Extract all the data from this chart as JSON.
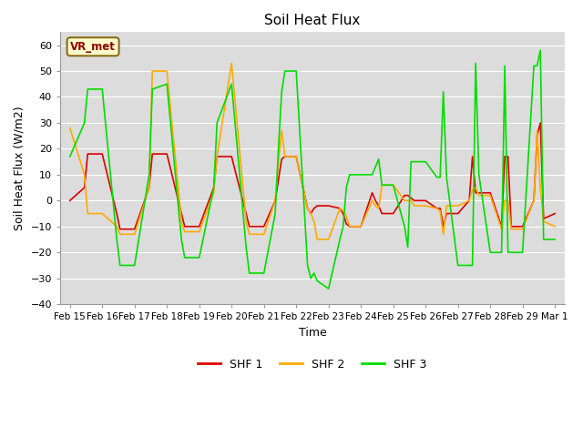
{
  "title": "Soil Heat Flux",
  "xlabel": "Time",
  "ylabel": "Soil Heat Flux (W/m2)",
  "ylim": [
    -40,
    65
  ],
  "yticks": [
    -40,
    -30,
    -20,
    -10,
    0,
    10,
    20,
    30,
    40,
    50,
    60
  ],
  "background_color": "#e8e8e8",
  "plot_bg_color": "#dcdcdc",
  "annotation_text": "VR_met",
  "annotation_color": "#8B0000",
  "annotation_bg": "#ffffcc",
  "x_labels": [
    "Feb 15",
    "Feb 16",
    "Feb 17",
    "Feb 18",
    "Feb 19",
    "Feb 20",
    "Feb 21",
    "Feb 22",
    "Feb 23",
    "Feb 24",
    "Feb 25",
    "Feb 26",
    "Feb 27",
    "Feb 28",
    "Feb 29",
    "Mar 1"
  ],
  "shf1_color": "#dd0000",
  "shf2_color": "#ffaa00",
  "shf3_color": "#00dd00",
  "legend_entries": [
    "SHF 1",
    "SHF 2",
    "SHF 3"
  ],
  "grid_color": "#ffffff",
  "line_width": 1.2,
  "shf1_x": [
    0.0,
    0.45,
    0.55,
    1.0,
    1.45,
    1.55,
    2.0,
    2.45,
    2.55,
    3.0,
    3.45,
    3.55,
    4.0,
    4.45,
    4.55,
    5.0,
    5.45,
    5.55,
    6.0,
    6.35,
    6.45,
    6.55,
    6.65,
    7.0,
    7.35,
    7.45,
    7.55,
    7.65,
    8.0,
    8.35,
    8.45,
    8.55,
    8.65,
    9.0,
    9.35,
    9.45,
    9.55,
    9.65,
    10.0,
    10.35,
    10.45,
    10.55,
    10.65,
    11.0,
    11.35,
    11.45,
    11.55,
    11.65,
    12.0,
    12.35,
    12.45,
    12.55,
    12.65,
    13.0,
    13.35,
    13.45,
    13.55,
    13.65,
    14.0,
    14.35,
    14.45,
    14.55,
    14.65,
    15.0
  ],
  "shf1_y": [
    0,
    5,
    18,
    18,
    -5,
    -11,
    -11,
    5,
    18,
    18,
    -5,
    -10,
    -10,
    5,
    17,
    17,
    -5,
    -10,
    -10,
    0,
    8,
    16,
    17,
    17,
    -3,
    -5,
    -3,
    -2,
    -2,
    -3,
    -5,
    -9,
    -10,
    -10,
    3,
    0,
    -2,
    -5,
    -5,
    2,
    2,
    1,
    0,
    0,
    -3,
    -3,
    -10,
    -5,
    -5,
    0,
    17,
    3,
    3,
    3,
    -10,
    17,
    17,
    -10,
    -10,
    0,
    25,
    30,
    -7,
    -5
  ],
  "shf2_x": [
    0.0,
    0.45,
    0.55,
    1.0,
    1.45,
    1.55,
    2.0,
    2.45,
    2.55,
    3.0,
    3.45,
    3.55,
    4.0,
    4.45,
    4.55,
    5.0,
    5.45,
    5.55,
    6.0,
    6.35,
    6.45,
    6.55,
    6.65,
    7.0,
    7.35,
    7.45,
    7.55,
    7.65,
    8.0,
    8.35,
    8.45,
    8.55,
    8.65,
    9.0,
    9.35,
    9.45,
    9.55,
    9.65,
    10.0,
    10.35,
    10.45,
    10.55,
    10.65,
    11.0,
    11.35,
    11.45,
    11.55,
    11.65,
    12.0,
    12.35,
    12.45,
    12.55,
    12.65,
    13.0,
    13.35,
    13.45,
    13.55,
    13.65,
    14.0,
    14.35,
    14.45,
    14.55,
    14.65,
    15.0
  ],
  "shf2_y": [
    28,
    10,
    -5,
    -5,
    -10,
    -13,
    -13,
    5,
    50,
    50,
    -8,
    -12,
    -12,
    3,
    17,
    53,
    -8,
    -13,
    -13,
    0,
    15,
    27,
    17,
    17,
    -3,
    -5,
    -8,
    -15,
    -15,
    -3,
    -4,
    -6,
    -10,
    -10,
    0,
    -2,
    -3,
    6,
    6,
    0,
    0,
    0,
    -2,
    -2,
    -3,
    -4,
    -13,
    -2,
    -2,
    0,
    4,
    5,
    2,
    2,
    -11,
    0,
    0,
    -11,
    -11,
    0,
    27,
    5,
    -8,
    -10
  ],
  "shf3_x": [
    0.0,
    0.45,
    0.55,
    1.0,
    1.45,
    1.55,
    2.0,
    2.45,
    2.55,
    3.0,
    3.45,
    3.55,
    4.0,
    4.45,
    4.55,
    5.0,
    5.45,
    5.55,
    6.0,
    6.35,
    6.45,
    6.55,
    6.65,
    7.0,
    7.35,
    7.45,
    7.55,
    7.65,
    8.0,
    8.35,
    8.45,
    8.55,
    8.65,
    9.0,
    9.35,
    9.45,
    9.55,
    9.65,
    10.0,
    10.35,
    10.45,
    10.55,
    10.65,
    11.0,
    11.35,
    11.45,
    11.55,
    11.65,
    12.0,
    12.35,
    12.45,
    12.55,
    12.65,
    13.0,
    13.35,
    13.45,
    13.55,
    13.65,
    14.0,
    14.35,
    14.45,
    14.55,
    14.65,
    15.0
  ],
  "shf3_y": [
    17,
    30,
    43,
    43,
    -15,
    -25,
    -25,
    10,
    43,
    45,
    -15,
    -22,
    -22,
    5,
    30,
    45,
    -18,
    -28,
    -28,
    -5,
    20,
    42,
    50,
    50,
    -25,
    -30,
    -28,
    -31,
    -34,
    -15,
    -10,
    5,
    10,
    10,
    10,
    13,
    16,
    6,
    6,
    -10,
    -18,
    15,
    15,
    15,
    9,
    9,
    42,
    9,
    -25,
    -25,
    -25,
    53,
    10,
    -20,
    -20,
    52,
    -20,
    -20,
    -20,
    52,
    52,
    58,
    -15,
    -15
  ]
}
